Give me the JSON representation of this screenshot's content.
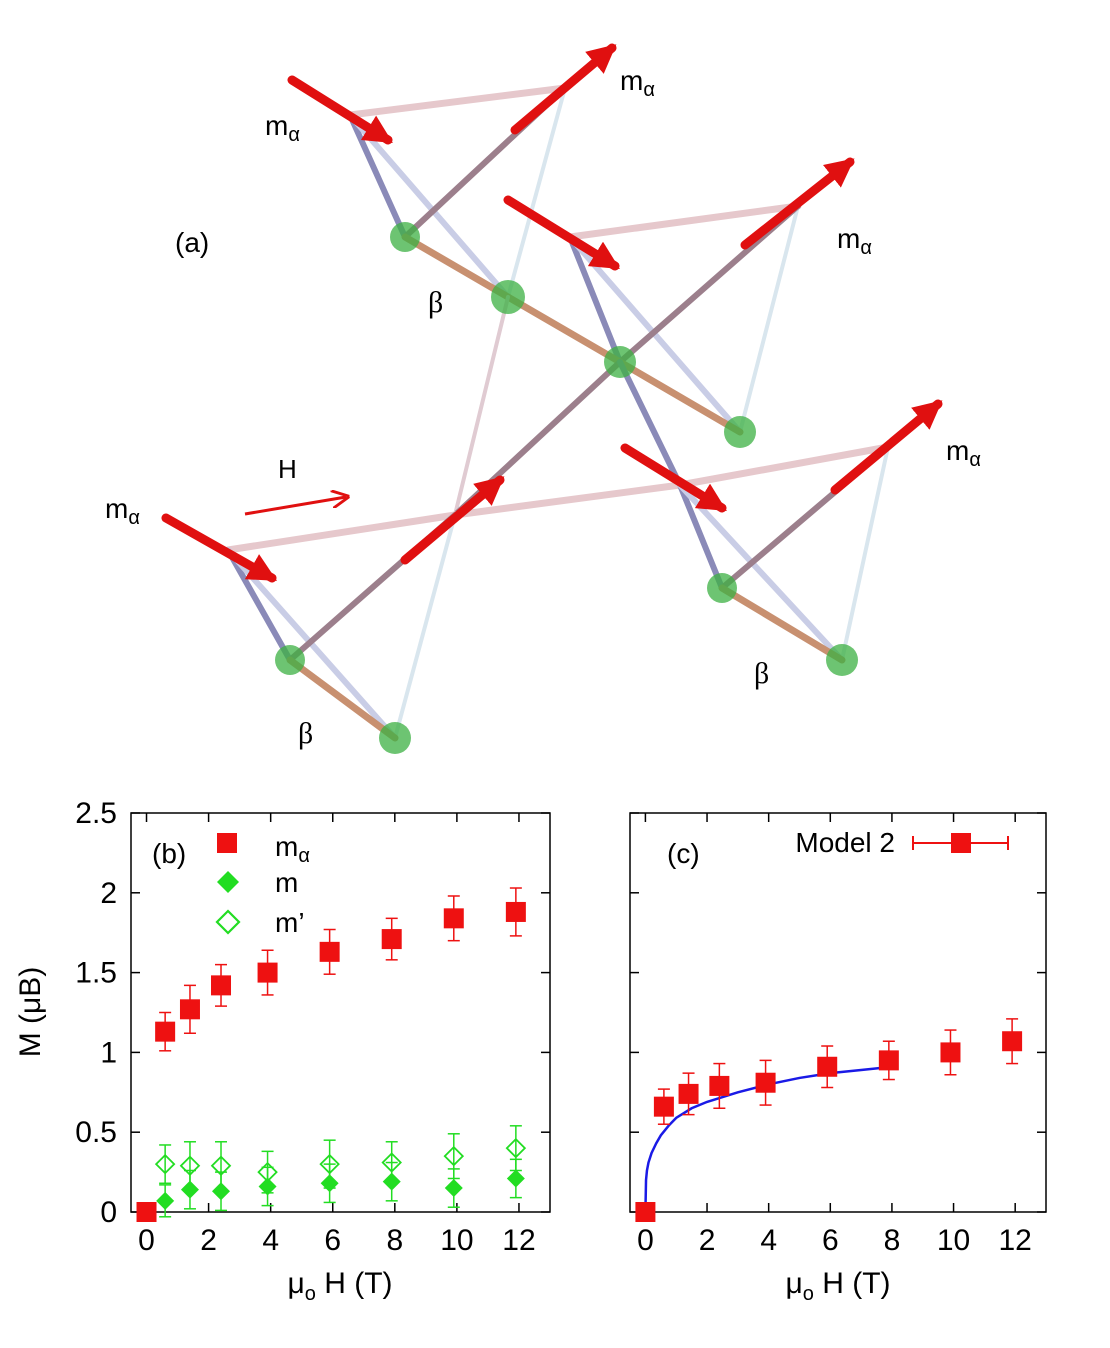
{
  "figure_labels": {
    "panel_a": "(a)",
    "panel_b": "(b)",
    "panel_c": "(c)",
    "field_label": "H",
    "site_alpha": "m",
    "site_alpha_sub": "α",
    "site_beta": "β"
  },
  "colors": {
    "moment_arrow": "#e01010",
    "beta_site": "#3cb043",
    "series_m_alpha": "#ee1111",
    "series_m": "#22dd22",
    "series_m_prime": "#22dd22",
    "model_fit": "#1a1ae6"
  },
  "chart_data": [
    {
      "type": "scatter",
      "panel": "(b)",
      "xlabel": "μ",
      "xlabel_sub": "o",
      "xlabel_rest": " H (T)",
      "ylabel": "M (μB)",
      "xlim": [
        -0.5,
        13
      ],
      "ylim": [
        0,
        2.5
      ],
      "xticks": [
        0,
        2,
        4,
        6,
        8,
        10,
        12
      ],
      "yticks": [
        0,
        0.5,
        1,
        1.5,
        2,
        2.5
      ],
      "ytick_labels": [
        "0",
        "0.5",
        "1",
        "1.5",
        "2",
        "2.5"
      ],
      "series": [
        {
          "name": "m",
          "name_sub": "α",
          "marker": "filled-square",
          "x": [
            0,
            0.6,
            1.4,
            2.4,
            3.9,
            5.9,
            7.9,
            9.9,
            11.9
          ],
          "y": [
            0.0,
            1.13,
            1.27,
            1.42,
            1.5,
            1.63,
            1.71,
            1.84,
            1.88
          ],
          "err": [
            0,
            0.12,
            0.15,
            0.13,
            0.14,
            0.14,
            0.13,
            0.14,
            0.15
          ]
        },
        {
          "name": "m",
          "name_sub": "",
          "marker": "filled-diamond",
          "x": [
            0.6,
            1.4,
            2.4,
            3.9,
            5.9,
            7.9,
            9.9,
            11.9
          ],
          "y": [
            0.07,
            0.14,
            0.13,
            0.16,
            0.18,
            0.19,
            0.15,
            0.21
          ],
          "err": [
            0.1,
            0.12,
            0.12,
            0.12,
            0.12,
            0.12,
            0.12,
            0.12
          ]
        },
        {
          "name": "m’",
          "name_sub": "",
          "marker": "open-diamond",
          "x": [
            0.6,
            1.4,
            2.4,
            3.9,
            5.9,
            7.9,
            9.9,
            11.9
          ],
          "y": [
            0.3,
            0.29,
            0.29,
            0.25,
            0.3,
            0.31,
            0.35,
            0.4
          ],
          "err": [
            0.12,
            0.15,
            0.15,
            0.13,
            0.15,
            0.13,
            0.14,
            0.14
          ]
        }
      ]
    },
    {
      "type": "scatter",
      "panel": "(c)",
      "xlabel": "μ",
      "xlabel_sub": "o",
      "xlabel_rest": " H (T)",
      "xlim": [
        -0.5,
        13
      ],
      "ylim": [
        0,
        2.5
      ],
      "xticks": [
        0,
        2,
        4,
        6,
        8,
        10,
        12
      ],
      "series": [
        {
          "name": "Model 2",
          "marker": "filled-square",
          "x": [
            0,
            0.6,
            1.4,
            2.4,
            3.9,
            5.9,
            7.9,
            9.9,
            11.9
          ],
          "y": [
            0.0,
            0.66,
            0.74,
            0.79,
            0.81,
            0.91,
            0.95,
            1.0,
            1.07
          ],
          "err": [
            0,
            0.11,
            0.13,
            0.14,
            0.14,
            0.13,
            0.12,
            0.14,
            0.14
          ]
        }
      ],
      "fit_curve": {
        "x": [
          0,
          0.02,
          0.05,
          0.1,
          0.2,
          0.35,
          0.5,
          0.75,
          1,
          1.5,
          2,
          3,
          4,
          5,
          6,
          7,
          8
        ],
        "y": [
          0,
          0.2,
          0.26,
          0.31,
          0.37,
          0.43,
          0.48,
          0.54,
          0.59,
          0.65,
          0.69,
          0.75,
          0.8,
          0.84,
          0.87,
          0.89,
          0.91
        ]
      }
    }
  ]
}
